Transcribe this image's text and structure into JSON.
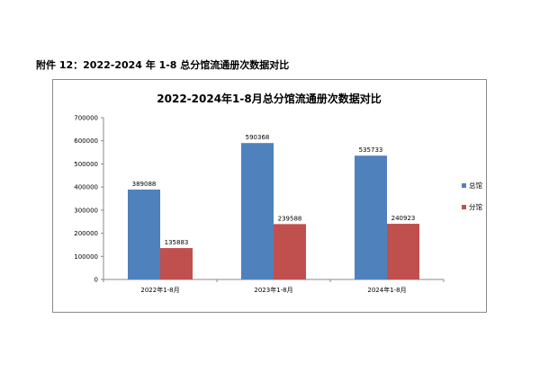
{
  "caption": "附件 12：2022-2024 年 1-8 总分馆流通册次数据对比",
  "chart_data": {
    "type": "bar",
    "title": "2022-2024年1-8月总分馆流通册次数据对比",
    "categories": [
      "2022年1-8月",
      "2023年1-8月",
      "2024年1-8月"
    ],
    "series": [
      {
        "name": "总馆",
        "color": "#4F81BD",
        "values": [
          389088,
          590368,
          535733
        ]
      },
      {
        "name": "分馆",
        "color": "#C0504D",
        "values": [
          135883,
          239588,
          240923
        ]
      }
    ],
    "ylim": [
      0,
      700000
    ],
    "yticks": [
      0,
      100000,
      200000,
      300000,
      400000,
      500000,
      600000,
      700000
    ],
    "grid": false,
    "legend": "right"
  }
}
